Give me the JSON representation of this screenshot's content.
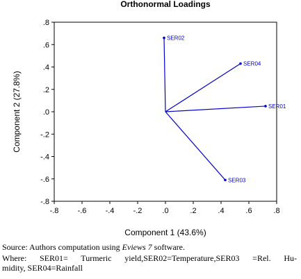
{
  "chart_data": {
    "type": "scatter",
    "title": "Orthonormal Loadings",
    "xlabel": "Component 1 (43.6%)",
    "ylabel": "Component 2 (27.8%)",
    "xlim": [
      -0.8,
      0.8
    ],
    "ylim": [
      -0.8,
      0.8
    ],
    "x_ticks": [
      "-.8",
      "-.6",
      "-.4",
      "-.2",
      ".0",
      ".2",
      ".4",
      ".6",
      ".8"
    ],
    "y_ticks": [
      ".8",
      ".6",
      ".4",
      ".2",
      ".0",
      "-.2",
      "-.4",
      "-.6",
      "-.8"
    ],
    "grid": false,
    "points": [
      {
        "label": "SER01",
        "x": 0.72,
        "y": 0.05
      },
      {
        "label": "SER02",
        "x": -0.01,
        "y": 0.66
      },
      {
        "label": "SER03",
        "x": 0.43,
        "y": -0.61
      },
      {
        "label": "SER04",
        "x": 0.54,
        "y": 0.43
      }
    ],
    "color": "#0000cc"
  },
  "caption": {
    "source_prefix": "Source: Authors computation using ",
    "source_software": "Eviews 7",
    "source_suffix": " software.",
    "where_line1": "Where: SER01= Turmeric yield,SER02=Temperature,SER03 =Rel. Hu-",
    "where_line2": "midity, SER04=Rainfall"
  }
}
